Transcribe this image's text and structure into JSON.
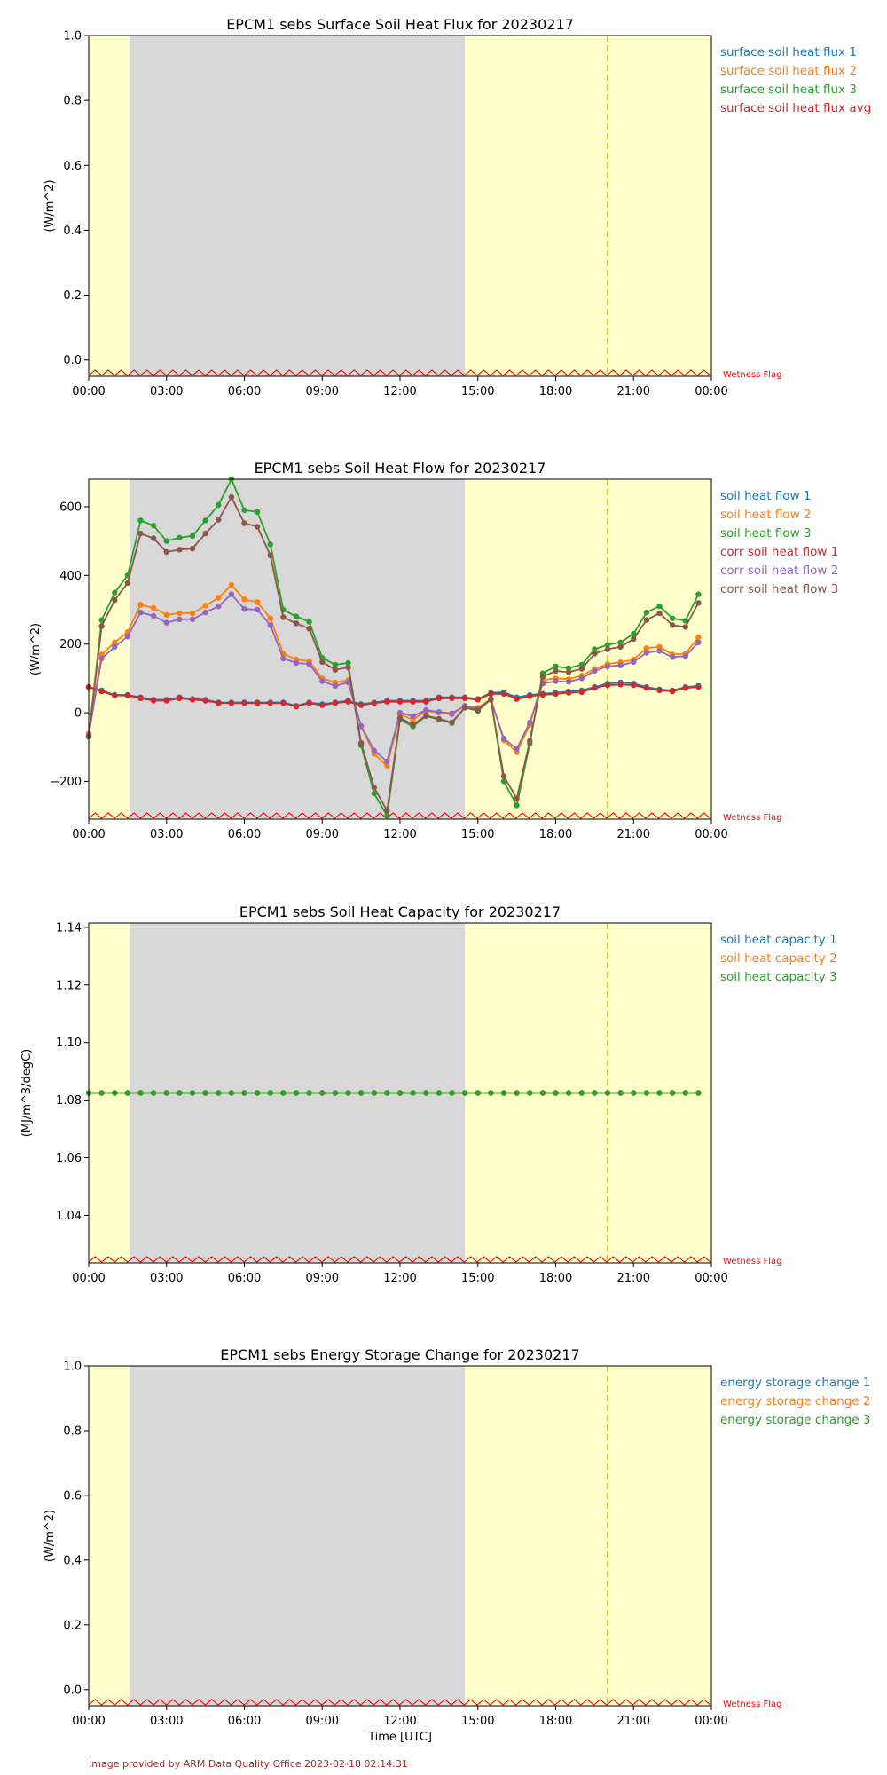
{
  "credit": "Image provided by ARM Data Quality Office 2023-02-18 02:14:31",
  "x_axis_label": "Time [UTC]",
  "wetness_flag_label": "Wetness Flag",
  "x_ticks": [
    "00:00",
    "03:00",
    "06:00",
    "09:00",
    "12:00",
    "15:00",
    "18:00",
    "21:00",
    "00:00"
  ],
  "night_shading": {
    "start_hour": 1.58,
    "end_hour": 14.5,
    "color": "#d8d8d8"
  },
  "day_shading_color": "#ffffcc",
  "marker_hour": 20.0,
  "colors": {
    "c1": "#1f77b4",
    "c2": "#ff7f0e",
    "c3": "#2ca02c",
    "c4": "#d62728",
    "c5": "#9467bd",
    "c6": "#8c564b"
  },
  "chart_data": [
    {
      "type": "line",
      "title": "EPCM1 sebs Surface Soil Heat Flux for 20230217",
      "ylabel": "(W/m^2)",
      "ylim": [
        -0.05,
        1.0
      ],
      "yticks": [
        0.0,
        0.2,
        0.4,
        0.6,
        0.8,
        1.0
      ],
      "ytick_labels": [
        "0.0",
        "0.2",
        "0.4",
        "0.6",
        "0.8",
        "1.0"
      ],
      "series": [
        {
          "name": "surface soil heat flux 1",
          "values": []
        },
        {
          "name": "surface soil heat flux 2",
          "values": []
        },
        {
          "name": "surface soil heat flux 3",
          "values": []
        },
        {
          "name": "surface soil heat flux avg",
          "values": []
        }
      ],
      "legend_colors": [
        "#1f77b4",
        "#ff7f0e",
        "#2ca02c",
        "#d62728"
      ]
    },
    {
      "type": "line",
      "title": "EPCM1 sebs Soil Heat Flow for 20230217",
      "ylabel": "(W/m^2)",
      "ylim": [
        -310,
        680
      ],
      "yticks": [
        -200,
        0,
        200,
        400,
        600
      ],
      "ytick_labels": [
        "−200",
        "0",
        "200",
        "400",
        "600"
      ],
      "x_hours": [
        0,
        0.5,
        1,
        1.5,
        2,
        2.5,
        3,
        3.5,
        4,
        4.5,
        5,
        5.5,
        6,
        6.5,
        7,
        7.5,
        8,
        8.5,
        9,
        9.5,
        10,
        10.5,
        11,
        11.5,
        12,
        12.5,
        13,
        13.5,
        14,
        14.5,
        15,
        15.5,
        16,
        16.5,
        17,
        17.5,
        18,
        18.5,
        19,
        19.5,
        20,
        20.5,
        21,
        21.5,
        22,
        22.5,
        23,
        23.5
      ],
      "series": [
        {
          "name": "soil heat flow 1",
          "values": [
            75,
            65,
            52,
            52,
            45,
            38,
            38,
            45,
            40,
            38,
            30,
            30,
            30,
            30,
            30,
            30,
            20,
            30,
            25,
            30,
            35,
            25,
            30,
            35,
            35,
            35,
            35,
            45,
            45,
            45,
            40,
            58,
            60,
            45,
            52,
            55,
            58,
            62,
            65,
            75,
            85,
            88,
            85,
            75,
            68,
            65,
            75,
            78
          ]
        },
        {
          "name": "soil heat flow 2",
          "values": [
            -60,
            170,
            205,
            235,
            315,
            305,
            285,
            290,
            290,
            312,
            335,
            372,
            330,
            322,
            275,
            172,
            155,
            150,
            100,
            88,
            95,
            -40,
            -120,
            -155,
            -5,
            -20,
            5,
            0,
            -5,
            20,
            15,
            40,
            -80,
            -115,
            -35,
            95,
            100,
            98,
            108,
            128,
            142,
            147,
            155,
            188,
            192,
            170,
            172,
            220
          ]
        },
        {
          "name": "soil heat flow 3",
          "values": [
            -70,
            270,
            350,
            400,
            560,
            545,
            500,
            510,
            515,
            560,
            605,
            680,
            590,
            585,
            490,
            300,
            280,
            265,
            160,
            140,
            145,
            -95,
            -235,
            -300,
            -20,
            -40,
            -10,
            -20,
            -30,
            15,
            5,
            40,
            -200,
            -270,
            -90,
            115,
            135,
            130,
            140,
            185,
            198,
            205,
            230,
            292,
            310,
            275,
            268,
            345
          ]
        },
        {
          "name": "corr soil heat flow 1",
          "values": [
            75,
            62,
            50,
            50,
            42,
            35,
            35,
            42,
            38,
            35,
            28,
            28,
            28,
            28,
            28,
            28,
            18,
            28,
            22,
            28,
            32,
            22,
            28,
            32,
            32,
            32,
            32,
            42,
            42,
            42,
            38,
            55,
            55,
            40,
            48,
            52,
            55,
            58,
            60,
            72,
            80,
            82,
            80,
            72,
            65,
            62,
            72,
            75
          ]
        },
        {
          "name": "corr soil heat flow 2",
          "values": [
            -65,
            158,
            192,
            222,
            292,
            282,
            262,
            272,
            272,
            292,
            310,
            345,
            302,
            300,
            255,
            158,
            145,
            142,
            92,
            78,
            88,
            -38,
            -110,
            -142,
            0,
            -10,
            8,
            2,
            -2,
            20,
            12,
            38,
            -75,
            -105,
            -28,
            85,
            92,
            90,
            100,
            122,
            135,
            138,
            148,
            175,
            180,
            162,
            165,
            205
          ]
        },
        {
          "name": "corr soil heat flow 3",
          "values": [
            -68,
            252,
            328,
            378,
            522,
            508,
            468,
            475,
            478,
            522,
            562,
            628,
            552,
            542,
            458,
            278,
            260,
            245,
            148,
            125,
            132,
            -88,
            -218,
            -285,
            -15,
            -35,
            -8,
            -18,
            -28,
            15,
            8,
            38,
            -185,
            -250,
            -82,
            105,
            122,
            118,
            128,
            172,
            185,
            192,
            215,
            270,
            290,
            255,
            250,
            320
          ]
        }
      ],
      "legend_colors": [
        "#1f77b4",
        "#ff7f0e",
        "#2ca02c",
        "#d62728",
        "#9467bd",
        "#8c564b"
      ]
    },
    {
      "type": "line",
      "title": "EPCM1 sebs Soil Heat Capacity for 20230217",
      "ylabel": "(MJ/m^3/degC)",
      "ylim": [
        1.0235,
        1.1415
      ],
      "yticks": [
        1.04,
        1.06,
        1.08,
        1.1,
        1.12,
        1.14
      ],
      "ytick_labels": [
        "1.04",
        "1.06",
        "1.08",
        "1.10",
        "1.12",
        "1.14"
      ],
      "x_hours": [
        0,
        0.5,
        1,
        1.5,
        2,
        2.5,
        3,
        3.5,
        4,
        4.5,
        5,
        5.5,
        6,
        6.5,
        7,
        7.5,
        8,
        8.5,
        9,
        9.5,
        10,
        10.5,
        11,
        11.5,
        12,
        12.5,
        13,
        13.5,
        14,
        14.5,
        15,
        15.5,
        16,
        16.5,
        17,
        17.5,
        18,
        18.5,
        19,
        19.5,
        20,
        20.5,
        21,
        21.5,
        22,
        22.5,
        23,
        23.5
      ],
      "series": [
        {
          "name": "soil heat capacity 1",
          "constant": 1.0825
        },
        {
          "name": "soil heat capacity 2",
          "constant": 1.0825
        },
        {
          "name": "soil heat capacity 3",
          "constant": 1.0825
        }
      ],
      "legend_colors": [
        "#1f77b4",
        "#ff7f0e",
        "#2ca02c"
      ]
    },
    {
      "type": "line",
      "title": "EPCM1 sebs Energy Storage Change for 20230217",
      "ylabel": "(W/m^2)",
      "ylim": [
        -0.05,
        1.0
      ],
      "yticks": [
        0.0,
        0.2,
        0.4,
        0.6,
        0.8,
        1.0
      ],
      "ytick_labels": [
        "0.0",
        "0.2",
        "0.4",
        "0.6",
        "0.8",
        "1.0"
      ],
      "series": [
        {
          "name": "energy storage change 1",
          "values": []
        },
        {
          "name": "energy storage change 2",
          "values": []
        },
        {
          "name": "energy storage change 3",
          "values": []
        }
      ],
      "legend_colors": [
        "#1f77b4",
        "#ff7f0e",
        "#2ca02c"
      ]
    }
  ]
}
